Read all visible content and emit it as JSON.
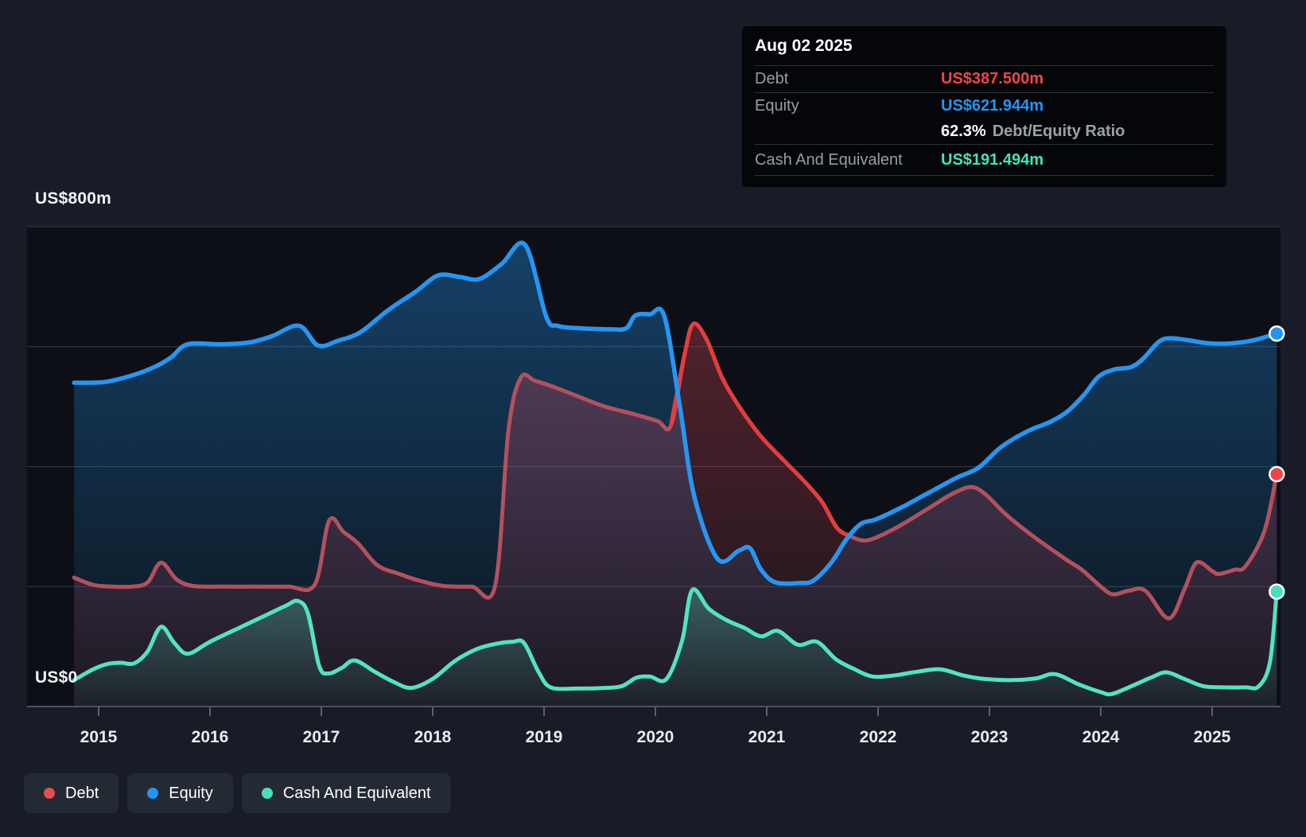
{
  "colors": {
    "page_bg": "#171c26",
    "plot_bg": "#0c1016",
    "gridline": "#333a44",
    "baseline": "#4b535d",
    "tick": "#59616c",
    "axis_text": "#e8ebf0",
    "debt_red": "#ef4444",
    "debt_red_muted": "#b4505e",
    "debt_red_bright": "#e53c3c",
    "equity_blue": "#2596f3",
    "cash_teal": "#52e3c2",
    "cash_teal_dot": "#45e0bd"
  },
  "y_axis": {
    "top_label": "US$800m",
    "bottom_label": "US$0"
  },
  "tooltip": {
    "date": "Aug 02 2025",
    "rows": [
      {
        "label": "Debt",
        "value": "US$387.500m",
        "color": "#ef4746"
      },
      {
        "label": "Equity",
        "value": "US$621.944m",
        "color": "#2596f3"
      },
      {
        "label": "Cash And Equivalent",
        "value": "US$191.494m",
        "color": "#45e3be"
      }
    ],
    "ratio": {
      "value": "62.3%",
      "label": "Debt/Equity Ratio"
    }
  },
  "legend": [
    {
      "label": "Debt",
      "color": "#e84c4c"
    },
    {
      "label": "Equity",
      "color": "#2196f3"
    },
    {
      "label": "Cash And Equivalent",
      "color": "#45e0bd"
    }
  ],
  "chart_data": {
    "type": "area",
    "unit": "US$ millions",
    "ylim": [
      0,
      800
    ],
    "y_gridlines": [
      800,
      600,
      400,
      200
    ],
    "x_ticks": [
      2015,
      2016,
      2017,
      2018,
      2019,
      2020,
      2021,
      2022,
      2023,
      2024,
      2025
    ],
    "x_range": [
      2014.78,
      2025.58
    ],
    "legend_position": "bottom-left",
    "series": [
      {
        "name": "Equity",
        "line_color": "#2596f3",
        "fill_top": "rgba(37,150,243,0.36)",
        "fill_bottom": "rgba(37,150,243,0.03)",
        "end_dot_color": "#2196f3",
        "points": [
          [
            2014.78,
            540
          ],
          [
            2015.05,
            541
          ],
          [
            2015.3,
            552
          ],
          [
            2015.5,
            566
          ],
          [
            2015.65,
            582
          ],
          [
            2015.8,
            604
          ],
          [
            2016.1,
            604
          ],
          [
            2016.35,
            607
          ],
          [
            2016.55,
            617
          ],
          [
            2016.8,
            635
          ],
          [
            2016.97,
            602
          ],
          [
            2017.15,
            610
          ],
          [
            2017.35,
            624
          ],
          [
            2017.6,
            661
          ],
          [
            2017.85,
            692
          ],
          [
            2018.05,
            719
          ],
          [
            2018.25,
            716
          ],
          [
            2018.42,
            713
          ],
          [
            2018.62,
            738
          ],
          [
            2018.83,
            770
          ],
          [
            2019.02,
            650
          ],
          [
            2019.12,
            635
          ],
          [
            2019.3,
            631
          ],
          [
            2019.6,
            629
          ],
          [
            2019.74,
            631
          ],
          [
            2019.82,
            652
          ],
          [
            2019.95,
            654
          ],
          [
            2020.08,
            651
          ],
          [
            2020.22,
            500
          ],
          [
            2020.35,
            350
          ],
          [
            2020.56,
            246
          ],
          [
            2020.75,
            260
          ],
          [
            2020.85,
            264
          ],
          [
            2020.95,
            228
          ],
          [
            2021.08,
            207
          ],
          [
            2021.3,
            206
          ],
          [
            2021.42,
            210
          ],
          [
            2021.58,
            240
          ],
          [
            2021.72,
            280
          ],
          [
            2021.85,
            305
          ],
          [
            2021.98,
            312
          ],
          [
            2022.2,
            331
          ],
          [
            2022.45,
            356
          ],
          [
            2022.7,
            381
          ],
          [
            2022.9,
            398
          ],
          [
            2023.1,
            432
          ],
          [
            2023.33,
            458
          ],
          [
            2023.55,
            475
          ],
          [
            2023.7,
            492
          ],
          [
            2023.85,
            520
          ],
          [
            2023.98,
            550
          ],
          [
            2024.12,
            562
          ],
          [
            2024.27,
            566
          ],
          [
            2024.38,
            580
          ],
          [
            2024.52,
            608
          ],
          [
            2024.62,
            614
          ],
          [
            2024.78,
            611
          ],
          [
            2024.95,
            606
          ],
          [
            2025.1,
            605
          ],
          [
            2025.25,
            607
          ],
          [
            2025.4,
            612
          ],
          [
            2025.58,
            621.944
          ]
        ]
      },
      {
        "name": "Debt",
        "line_color": "#b4505e",
        "fill_top": "rgba(214,70,88,0.34)",
        "fill_bottom": "rgba(214,70,88,0.07)",
        "end_dot_color": "#ef4444",
        "highlight": {
          "from": 2020.14,
          "to": 2021.75,
          "color": "#e53c3c"
        },
        "points": [
          [
            2014.78,
            215
          ],
          [
            2014.95,
            203
          ],
          [
            2015.12,
            200
          ],
          [
            2015.3,
            200
          ],
          [
            2015.44,
            207
          ],
          [
            2015.56,
            240
          ],
          [
            2015.7,
            212
          ],
          [
            2015.85,
            201
          ],
          [
            2016.1,
            200
          ],
          [
            2016.4,
            200
          ],
          [
            2016.7,
            200
          ],
          [
            2016.94,
            203
          ],
          [
            2017.07,
            310
          ],
          [
            2017.2,
            291
          ],
          [
            2017.33,
            272
          ],
          [
            2017.5,
            236
          ],
          [
            2017.7,
            221
          ],
          [
            2017.9,
            209
          ],
          [
            2018.1,
            201
          ],
          [
            2018.35,
            200
          ],
          [
            2018.56,
            201
          ],
          [
            2018.68,
            460
          ],
          [
            2018.79,
            548
          ],
          [
            2018.92,
            543
          ],
          [
            2019.1,
            532
          ],
          [
            2019.32,
            516
          ],
          [
            2019.55,
            500
          ],
          [
            2019.8,
            488
          ],
          [
            2020.02,
            476
          ],
          [
            2020.14,
            469
          ],
          [
            2020.26,
            585
          ],
          [
            2020.34,
            638
          ],
          [
            2020.46,
            612
          ],
          [
            2020.6,
            548
          ],
          [
            2020.76,
            498
          ],
          [
            2020.95,
            450
          ],
          [
            2021.15,
            411
          ],
          [
            2021.35,
            373
          ],
          [
            2021.5,
            340
          ],
          [
            2021.63,
            298
          ],
          [
            2021.75,
            284
          ],
          [
            2021.9,
            277
          ],
          [
            2022.1,
            292
          ],
          [
            2022.3,
            313
          ],
          [
            2022.5,
            336
          ],
          [
            2022.68,
            356
          ],
          [
            2022.84,
            366
          ],
          [
            2022.97,
            353
          ],
          [
            2023.15,
            320
          ],
          [
            2023.4,
            283
          ],
          [
            2023.69,
            245
          ],
          [
            2023.83,
            228
          ],
          [
            2024.0,
            200
          ],
          [
            2024.11,
            187
          ],
          [
            2024.25,
            193
          ],
          [
            2024.4,
            193
          ],
          [
            2024.61,
            147
          ],
          [
            2024.75,
            195
          ],
          [
            2024.86,
            240
          ],
          [
            2025.0,
            226
          ],
          [
            2025.06,
            221
          ],
          [
            2025.2,
            228
          ],
          [
            2025.3,
            234
          ],
          [
            2025.47,
            293
          ],
          [
            2025.58,
            387.5
          ]
        ]
      },
      {
        "name": "Cash And Equivalent",
        "line_color": "#52e3c2",
        "fill_top": "rgba(82,227,194,0.30)",
        "fill_bottom": "rgba(82,227,194,0.04)",
        "end_dot_color": "#45e0bd",
        "points": [
          [
            2014.78,
            44
          ],
          [
            2014.95,
            62
          ],
          [
            2015.08,
            71
          ],
          [
            2015.2,
            73
          ],
          [
            2015.32,
            72
          ],
          [
            2015.44,
            92
          ],
          [
            2015.56,
            133
          ],
          [
            2015.68,
            106
          ],
          [
            2015.8,
            88
          ],
          [
            2016.0,
            108
          ],
          [
            2016.26,
            131
          ],
          [
            2016.5,
            152
          ],
          [
            2016.68,
            168
          ],
          [
            2016.79,
            176
          ],
          [
            2016.88,
            155
          ],
          [
            2016.98,
            68
          ],
          [
            2017.06,
            55
          ],
          [
            2017.18,
            64
          ],
          [
            2017.3,
            77
          ],
          [
            2017.48,
            58
          ],
          [
            2017.65,
            41
          ],
          [
            2017.81,
            31
          ],
          [
            2018.0,
            46
          ],
          [
            2018.2,
            76
          ],
          [
            2018.4,
            96
          ],
          [
            2018.58,
            105
          ],
          [
            2018.72,
            108
          ],
          [
            2018.82,
            106
          ],
          [
            2018.95,
            58
          ],
          [
            2019.06,
            32
          ],
          [
            2019.3,
            30
          ],
          [
            2019.55,
            31
          ],
          [
            2019.7,
            34
          ],
          [
            2019.83,
            48
          ],
          [
            2019.95,
            50
          ],
          [
            2020.1,
            46
          ],
          [
            2020.24,
            110
          ],
          [
            2020.33,
            194
          ],
          [
            2020.48,
            163
          ],
          [
            2020.64,
            144
          ],
          [
            2020.8,
            131
          ],
          [
            2020.95,
            117
          ],
          [
            2021.1,
            126
          ],
          [
            2021.28,
            103
          ],
          [
            2021.45,
            108
          ],
          [
            2021.62,
            79
          ],
          [
            2021.78,
            63
          ],
          [
            2021.95,
            50
          ],
          [
            2022.15,
            52
          ],
          [
            2022.35,
            58
          ],
          [
            2022.56,
            62
          ],
          [
            2022.76,
            52
          ],
          [
            2022.95,
            46
          ],
          [
            2023.2,
            44
          ],
          [
            2023.42,
            47
          ],
          [
            2023.59,
            54
          ],
          [
            2023.8,
            37
          ],
          [
            2024.0,
            24
          ],
          [
            2024.1,
            21
          ],
          [
            2024.3,
            36
          ],
          [
            2024.46,
            49
          ],
          [
            2024.59,
            57
          ],
          [
            2024.75,
            46
          ],
          [
            2024.92,
            34
          ],
          [
            2025.1,
            32
          ],
          [
            2025.3,
            32
          ],
          [
            2025.42,
            34
          ],
          [
            2025.52,
            75
          ],
          [
            2025.58,
            191.494
          ]
        ]
      }
    ]
  }
}
